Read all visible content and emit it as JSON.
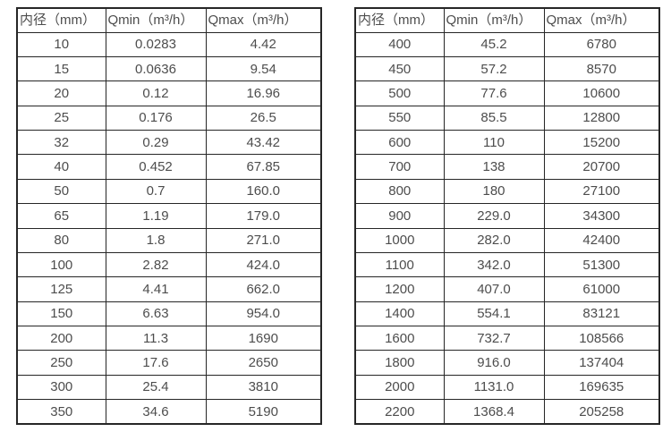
{
  "colors": {
    "background": "#ffffff",
    "table_border": "#262626",
    "text": "#4d4d4d"
  },
  "tables": [
    {
      "name": "flow-spec-table-small-diameters",
      "headers": [
        "内径（mm）",
        "Qmin（m³/h）",
        "Qmax（m³/h）"
      ],
      "rows": [
        [
          "10",
          "0.0283",
          "4.42"
        ],
        [
          "15",
          "0.0636",
          "9.54"
        ],
        [
          "20",
          "0.12",
          "16.96"
        ],
        [
          "25",
          "0.176",
          "26.5"
        ],
        [
          "32",
          "0.29",
          "43.42"
        ],
        [
          "40",
          "0.452",
          "67.85"
        ],
        [
          "50",
          "0.7",
          "160.0"
        ],
        [
          "65",
          "1.19",
          "179.0"
        ],
        [
          "80",
          "1.8",
          "271.0"
        ],
        [
          "100",
          "2.82",
          "424.0"
        ],
        [
          "125",
          "4.41",
          "662.0"
        ],
        [
          "150",
          "6.63",
          "954.0"
        ],
        [
          "200",
          "11.3",
          "1690"
        ],
        [
          "250",
          "17.6",
          "2650"
        ],
        [
          "300",
          "25.4",
          "3810"
        ],
        [
          "350",
          "34.6",
          "5190"
        ]
      ]
    },
    {
      "name": "flow-spec-table-large-diameters",
      "headers": [
        "内径（mm）",
        "Qmin（m³/h）",
        "Qmax（m³/h）"
      ],
      "rows": [
        [
          "400",
          "45.2",
          "6780"
        ],
        [
          "450",
          "57.2",
          "8570"
        ],
        [
          "500",
          "77.6",
          "10600"
        ],
        [
          "550",
          "85.5",
          "12800"
        ],
        [
          "600",
          "110",
          "15200"
        ],
        [
          "700",
          "138",
          "20700"
        ],
        [
          "800",
          "180",
          "27100"
        ],
        [
          "900",
          "229.0",
          "34300"
        ],
        [
          "1000",
          "282.0",
          "42400"
        ],
        [
          "1100",
          "342.0",
          "51300"
        ],
        [
          "1200",
          "407.0",
          "61000"
        ],
        [
          "1400",
          "554.1",
          "83121"
        ],
        [
          "1600",
          "732.7",
          "108566"
        ],
        [
          "1800",
          "916.0",
          "137404"
        ],
        [
          "2000",
          "1131.0",
          "169635"
        ],
        [
          "2200",
          "1368.4",
          "205258"
        ]
      ]
    }
  ]
}
